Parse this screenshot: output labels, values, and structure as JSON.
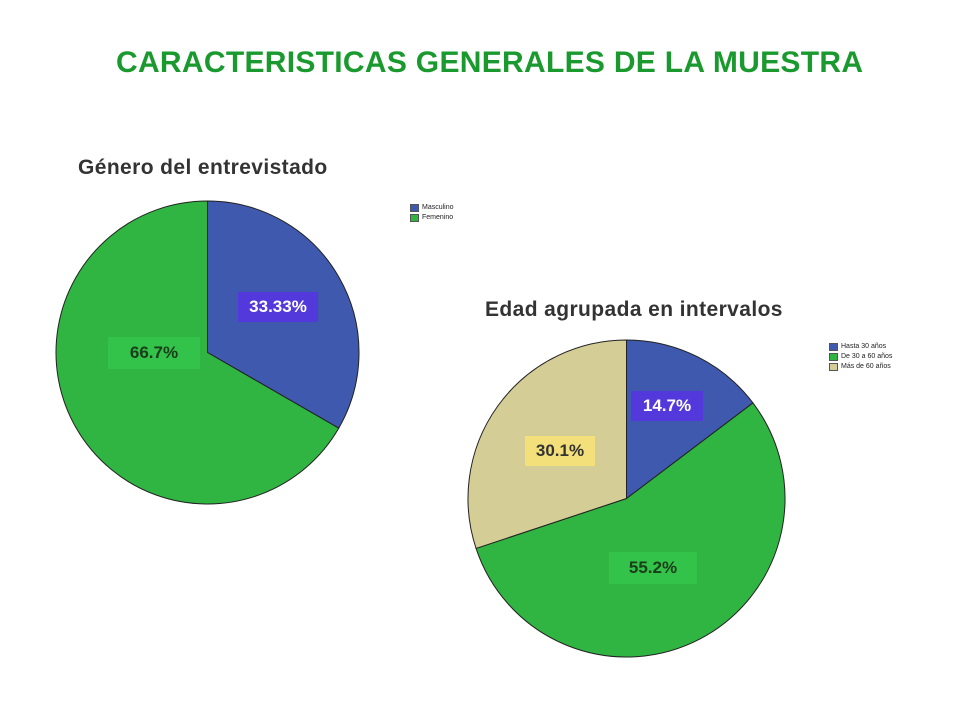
{
  "title": "CARACTERISTICAS GENERALES DE LA MUESTRA",
  "chart_data": [
    {
      "type": "pie",
      "title": "Género del entrevistado",
      "categories": [
        "Masculino",
        "Femenino"
      ],
      "values": [
        33.33,
        66.7
      ],
      "labels": [
        "33.33%",
        "66.7%"
      ],
      "colors": [
        "#3f59ae",
        "#30b542"
      ],
      "label_colors": [
        "#5339dc",
        "#33c24a"
      ],
      "label_text_colors": [
        "#ffffff",
        "#1a3d1a"
      ],
      "legend": "top-right"
    },
    {
      "type": "pie",
      "title": "Edad agrupada en intervalos",
      "categories": [
        "Hasta 30 años",
        "De 30 a 60 años",
        "Más de 60 años"
      ],
      "values": [
        14.7,
        55.2,
        30.1
      ],
      "labels": [
        "14.7%",
        "55.2%",
        "30.1%"
      ],
      "colors": [
        "#3f59ae",
        "#30b542",
        "#d4cd96"
      ],
      "label_colors": [
        "#5339dc",
        "#33c24a",
        "#f3e07a"
      ],
      "label_text_colors": [
        "#ffffff",
        "#1a3d1a",
        "#333333"
      ],
      "legend": "top-right"
    }
  ]
}
